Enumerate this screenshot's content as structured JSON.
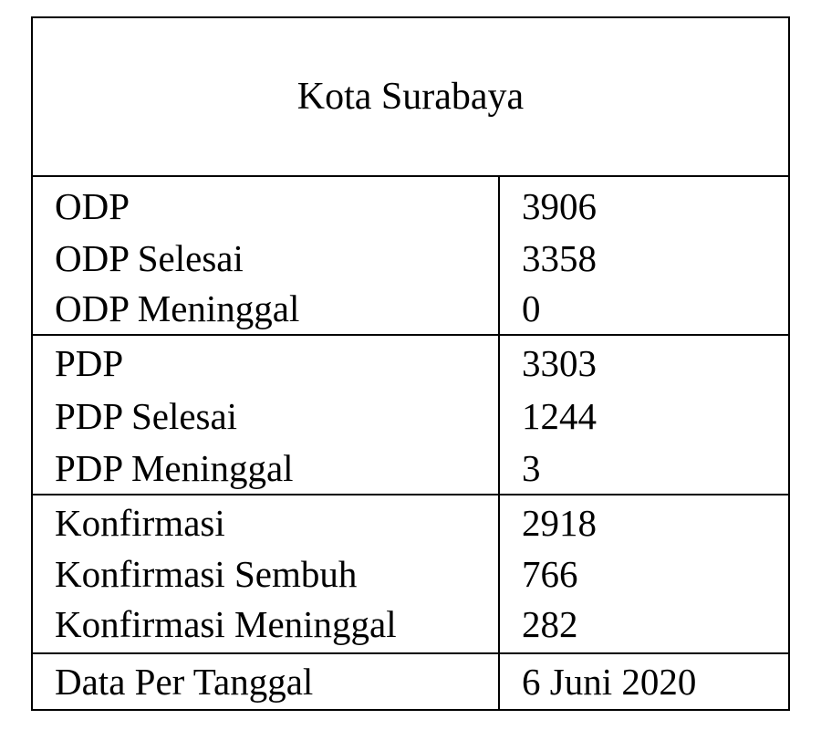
{
  "title": "Kota Surabaya",
  "groups": [
    {
      "rows": [
        {
          "label": "ODP",
          "value": "3906"
        },
        {
          "label": "ODP Selesai",
          "value": "3358"
        },
        {
          "label": "ODP Meninggal",
          "value": "0"
        }
      ]
    },
    {
      "rows": [
        {
          "label": "PDP",
          "value": "3303"
        },
        {
          "label": "PDP Selesai",
          "value": "1244"
        },
        {
          "label": "PDP Meninggal",
          "value": "3"
        }
      ]
    },
    {
      "rows": [
        {
          "label": "Konfirmasi",
          "value": "2918"
        },
        {
          "label": "Konfirmasi Sembuh",
          "value": "766"
        },
        {
          "label": "Konfirmasi Meninggal",
          "value": "282"
        }
      ]
    },
    {
      "rows": [
        {
          "label": "Data Per Tanggal",
          "value": "6 Juni 2020"
        }
      ]
    }
  ]
}
